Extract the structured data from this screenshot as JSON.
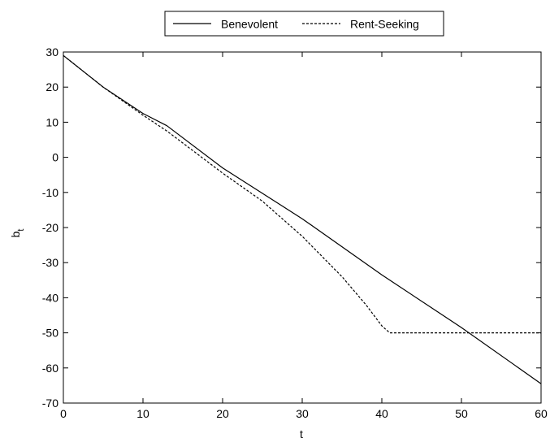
{
  "chart_data": {
    "type": "line",
    "title": "",
    "xlabel": "t",
    "ylabel": "b",
    "ylabel_subscript": "t",
    "xlim": [
      0,
      60
    ],
    "ylim": [
      -70,
      30
    ],
    "xticks": [
      0,
      10,
      20,
      30,
      40,
      50,
      60
    ],
    "yticks": [
      -70,
      -60,
      -50,
      -40,
      -30,
      -20,
      -10,
      0,
      10,
      20,
      30
    ],
    "grid": false,
    "legend_position": "top",
    "legend_orientation": "horizontal",
    "series": [
      {
        "name": "Benevolent",
        "style": "solid",
        "color": "#000000",
        "points": [
          [
            0,
            29
          ],
          [
            5,
            20
          ],
          [
            10,
            12.5
          ],
          [
            13,
            9
          ],
          [
            20,
            -3
          ],
          [
            30,
            -17.5
          ],
          [
            40,
            -33.5
          ],
          [
            50,
            -48.5
          ],
          [
            60,
            -64.5
          ]
        ]
      },
      {
        "name": "Rent-Seeking",
        "style": "dashed",
        "color": "#000000",
        "points": [
          [
            0,
            29
          ],
          [
            5,
            20
          ],
          [
            10,
            12
          ],
          [
            13,
            7.5
          ],
          [
            20,
            -4.5
          ],
          [
            25,
            -12.5
          ],
          [
            30,
            -22.5
          ],
          [
            35,
            -34
          ],
          [
            38,
            -42
          ],
          [
            40,
            -48
          ],
          [
            41,
            -50
          ],
          [
            60,
            -50
          ]
        ]
      }
    ]
  }
}
